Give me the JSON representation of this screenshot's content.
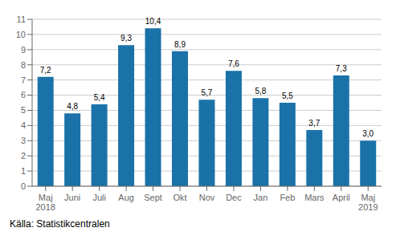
{
  "chart_data": {
    "type": "bar",
    "categories": [
      "Maj\n2018",
      "Juni",
      "Juli",
      "Aug",
      "Sept",
      "Okt",
      "Nov",
      "Dec",
      "Jan",
      "Feb",
      "Mars",
      "April",
      "Maj\n2019"
    ],
    "values": [
      7.2,
      4.8,
      5.4,
      9.3,
      10.4,
      8.9,
      5.7,
      7.6,
      5.8,
      5.5,
      3.7,
      7.3,
      3.0
    ],
    "value_labels": [
      "7,2",
      "4,8",
      "5,4",
      "9,3",
      "10,4",
      "8,9",
      "5,7",
      "7,6",
      "5,8",
      "5,5",
      "3,7",
      "7,3",
      "3,0"
    ],
    "data_labels": true,
    "color": "#1a72a8",
    "ylim": [
      0,
      11
    ],
    "yticks": [
      0,
      1,
      2,
      3,
      4,
      5,
      6,
      7,
      8,
      9,
      10,
      11
    ],
    "grid": true,
    "annotations": [
      "Källa: Statistikcentralen"
    ]
  }
}
